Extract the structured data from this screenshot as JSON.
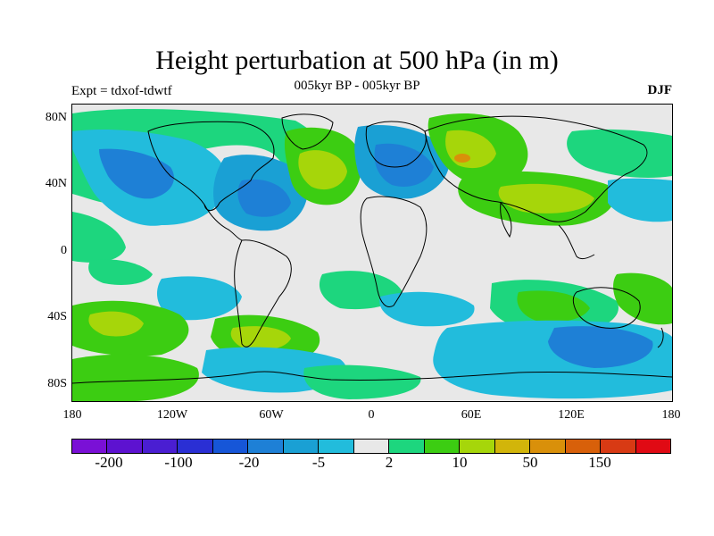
{
  "title": "Height perturbation at 500 hPa (in m)",
  "subtitle": "005kyr BP - 005kyr BP",
  "left_label": "Expt = tdxof-tdwtf",
  "right_label": "DJF",
  "map": {
    "y_ticks": [
      "80N",
      "40N",
      "0",
      "40S",
      "80S"
    ],
    "x_ticks": [
      "180",
      "120W",
      "60W",
      "0",
      "60E",
      "120E",
      "180"
    ],
    "lon_range": [
      -180,
      180
    ],
    "lat_range": [
      -90,
      90
    ]
  },
  "colorbar": {
    "colors": [
      "#7a10d6",
      "#5d12d0",
      "#4a1ed2",
      "#2a2fd4",
      "#1656d8",
      "#1e80d6",
      "#1aa0d4",
      "#22bcdc",
      "#e8e8e8",
      "#1dd67e",
      "#3ccd12",
      "#a6d60a",
      "#d2b50a",
      "#d9900a",
      "#d8600a",
      "#d83a14",
      "#e00a14"
    ],
    "labels": [
      "-200",
      "-100",
      "-20",
      "-5",
      "2",
      "10",
      "50",
      "150"
    ]
  },
  "legend": {
    "neutral": "#e8e8e8",
    "blue_light": "#22bcdc",
    "blue_mid": "#1aa0d4",
    "blue_dark": "#1e80d6",
    "green_teal": "#1dd67e",
    "green": "#3ccd12",
    "yellow_green": "#a6d60a",
    "orange": "#d9900a"
  }
}
